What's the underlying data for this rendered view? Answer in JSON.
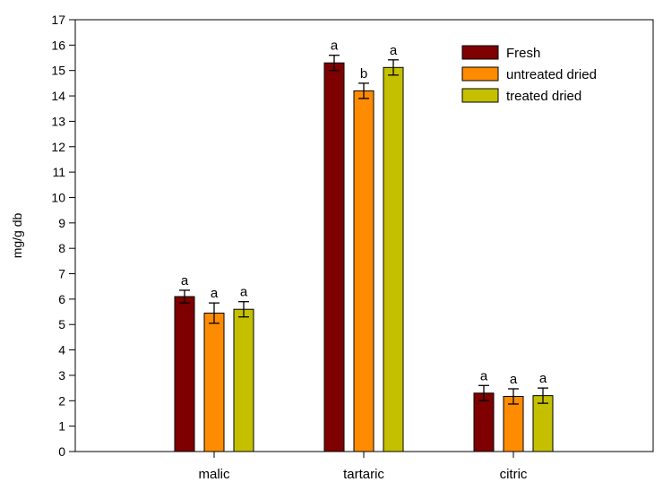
{
  "chart_data": {
    "type": "bar",
    "ylabel": "mg/g db",
    "ylim": [
      0,
      17
    ],
    "yticks": [
      0,
      1,
      2,
      3,
      4,
      5,
      6,
      7,
      8,
      9,
      10,
      11,
      12,
      13,
      14,
      15,
      16,
      17
    ],
    "categories": [
      "malic",
      "tartaric",
      "citric"
    ],
    "series": [
      {
        "name": "Fresh",
        "color": "#7f0000",
        "values": [
          6.1,
          15.3,
          2.3
        ],
        "errors": [
          0.25,
          0.3,
          0.3
        ],
        "letters": [
          "a",
          "a",
          "a"
        ]
      },
      {
        "name": "untreated dried",
        "color": "#ff8c00",
        "values": [
          5.45,
          14.2,
          2.17
        ],
        "errors": [
          0.4,
          0.3,
          0.3
        ],
        "letters": [
          "a",
          "b",
          "a"
        ]
      },
      {
        "name": "treated dried",
        "color": "#c4c000",
        "values": [
          5.6,
          15.12,
          2.2
        ],
        "errors": [
          0.3,
          0.3,
          0.3
        ],
        "letters": [
          "a",
          "a",
          "a"
        ]
      }
    ],
    "legend_position": "top-right",
    "grid": false
  }
}
